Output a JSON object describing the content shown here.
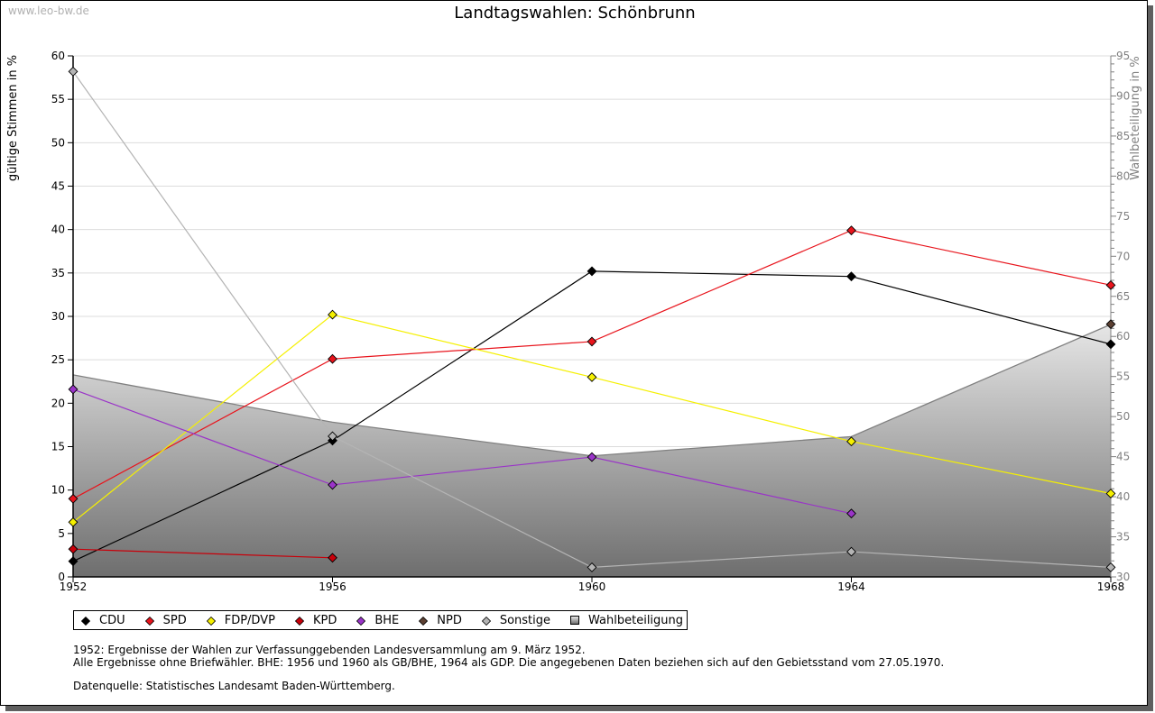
{
  "watermark": "www.leo-bw.de",
  "chart_data": {
    "type": "line",
    "title": "Landtagswahlen: Schönbrunn",
    "xlabel": "",
    "ylabel": "gültige Stimmen in %",
    "y2label": "Wahlbeteiligung in %",
    "x": [
      1952,
      1956,
      1960,
      1964,
      1968
    ],
    "x_ticks": [
      "1952",
      "1956",
      "1960",
      "1964",
      "1968"
    ],
    "ylim": [
      0,
      60
    ],
    "y_ticks": [
      "0",
      "5",
      "10",
      "15",
      "20",
      "25",
      "30",
      "35",
      "40",
      "45",
      "50",
      "55",
      "60"
    ],
    "y2lim": [
      30,
      95
    ],
    "y2_ticks": [
      "30",
      "35",
      "40",
      "45",
      "50",
      "55",
      "60",
      "65",
      "70",
      "75",
      "80",
      "85",
      "90",
      "95"
    ],
    "grid": true,
    "legend_position": "bottom-left",
    "series": [
      {
        "name": "CDU",
        "color": "#000000",
        "values": [
          1.8,
          15.7,
          35.2,
          34.6,
          26.8
        ]
      },
      {
        "name": "SPD",
        "color": "#e8141c",
        "values": [
          9.0,
          25.1,
          27.1,
          39.9,
          33.6
        ]
      },
      {
        "name": "FDP/DVP",
        "color": "#f5f000",
        "values": [
          6.3,
          30.2,
          23.0,
          15.6,
          9.6
        ]
      },
      {
        "name": "KPD",
        "color": "#c8000a",
        "values": [
          3.2,
          2.2,
          null,
          null,
          null
        ]
      },
      {
        "name": "BHE",
        "color": "#9a34c8",
        "values": [
          21.6,
          10.6,
          13.8,
          7.3,
          null
        ]
      },
      {
        "name": "NPD",
        "color": "#5c4032",
        "values": [
          null,
          null,
          null,
          null,
          29.1
        ]
      },
      {
        "name": "Sonstige",
        "color": "#b4b4b4",
        "values": [
          58.2,
          16.2,
          1.1,
          2.9,
          1.1
        ]
      }
    ],
    "area_series": {
      "name": "Wahlbeteiligung",
      "axis": "right",
      "color": "#808080",
      "values": [
        55.2,
        49.3,
        45.1,
        47.5,
        61.5
      ]
    }
  },
  "notes": {
    "line1": "1952: Ergebnisse der Wahlen zur Verfassunggebenden Landesversammlung am 9. März 1952.",
    "line2": "Alle Ergebnisse ohne Briefwähler. BHE: 1956 und 1960 als GB/BHE, 1964 als GDP. Die angegebenen Daten beziehen sich auf den Gebietsstand vom 27.05.1970.",
    "source": "Datenquelle: Statistisches Landesamt Baden-Württemberg."
  }
}
